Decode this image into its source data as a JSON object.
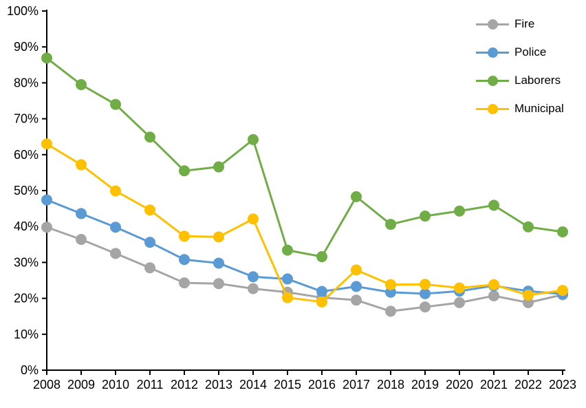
{
  "chart_data": {
    "type": "line",
    "title": "",
    "xlabel": "",
    "ylabel": "",
    "x": [
      "2008",
      "2009",
      "2010",
      "2011",
      "2012",
      "2013",
      "2014",
      "2015",
      "2016",
      "2017",
      "2018",
      "2019",
      "2020",
      "2021",
      "2022",
      "2023"
    ],
    "series": [
      {
        "name": "Fire",
        "color": "#A5A5A5",
        "values": [
          39.8,
          36.4,
          32.5,
          28.5,
          24.3,
          24.1,
          22.7,
          21.7,
          20.2,
          19.5,
          16.4,
          17.6,
          18.8,
          20.7,
          18.8,
          21.0
        ]
      },
      {
        "name": "Police",
        "color": "#5B9BD5",
        "values": [
          47.4,
          43.6,
          39.8,
          35.6,
          30.8,
          29.8,
          26.0,
          25.4,
          21.9,
          23.3,
          21.7,
          21.3,
          22.0,
          23.5,
          22.0,
          21.2
        ]
      },
      {
        "name": "Laborers",
        "color": "#70AD47",
        "values": [
          86.9,
          79.5,
          74.0,
          64.9,
          55.5,
          56.6,
          64.2,
          33.4,
          31.6,
          48.3,
          40.6,
          42.9,
          44.3,
          45.9,
          39.9,
          38.5
        ]
      },
      {
        "name": "Municipal",
        "color": "#FFC000",
        "values": [
          63.0,
          57.2,
          49.9,
          44.6,
          37.3,
          37.1,
          42.1,
          20.2,
          19.0,
          27.9,
          23.8,
          23.9,
          22.9,
          23.8,
          20.9,
          22.2
        ]
      }
    ],
    "ylim": [
      0,
      100
    ],
    "ytick_step": 10,
    "ytick_suffix": "%",
    "grid": false,
    "legend_position": "top-right",
    "marker": "circle",
    "axis_color": "#000000",
    "text_color": "#000000"
  }
}
